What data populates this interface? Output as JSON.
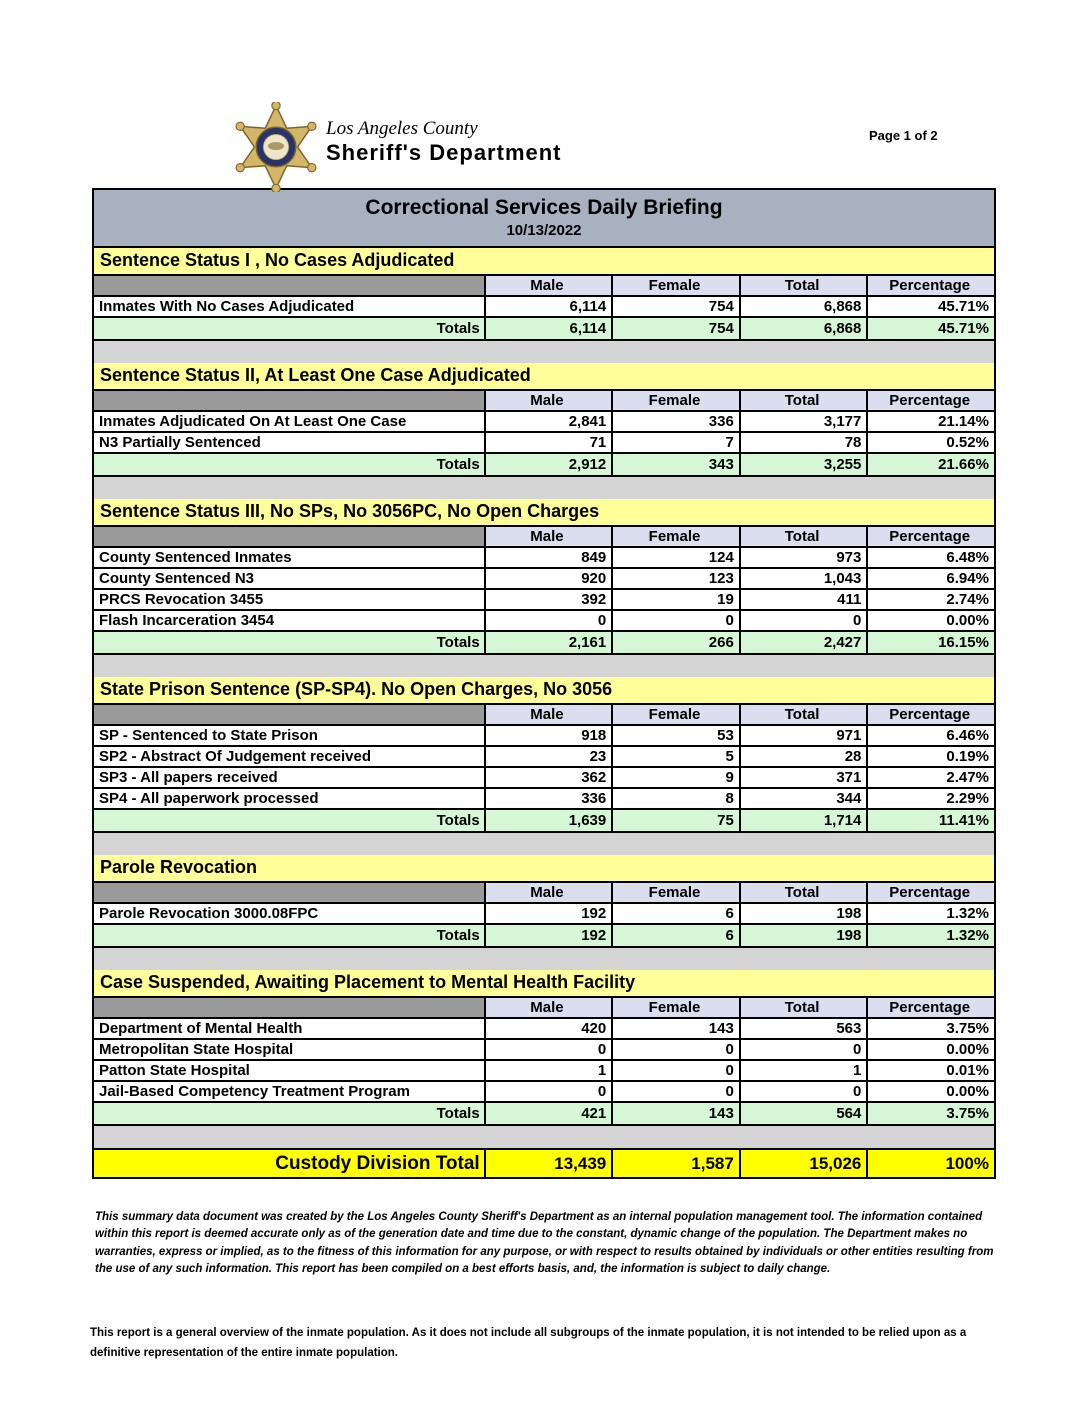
{
  "header": {
    "logo_icon": "sheriff-star-badge-icon",
    "agency_line1": "Los Angeles County",
    "agency_line2": "Sheriff's Department",
    "page_label": "Page 1 of 2"
  },
  "report": {
    "title": "Correctional Services Daily Briefing",
    "date": "10/13/2022",
    "columns": [
      "Male",
      "Female",
      "Total",
      "Percentage"
    ],
    "sections": [
      {
        "title": "Sentence Status I , No Cases Adjudicated",
        "rows": [
          {
            "label": "Inmates With No Cases Adjudicated",
            "male": "6,114",
            "female": "754",
            "total": "6,868",
            "pct": "45.71%"
          }
        ],
        "totals": {
          "label": "Totals",
          "male": "6,114",
          "female": "754",
          "total": "6,868",
          "pct": "45.71%"
        }
      },
      {
        "title": "Sentence Status II, At Least One Case Adjudicated",
        "rows": [
          {
            "label": "Inmates Adjudicated On At Least One Case",
            "male": "2,841",
            "female": "336",
            "total": "3,177",
            "pct": "21.14%"
          },
          {
            "label": "N3 Partially Sentenced",
            "male": "71",
            "female": "7",
            "total": "78",
            "pct": "0.52%"
          }
        ],
        "totals": {
          "label": "Totals",
          "male": "2,912",
          "female": "343",
          "total": "3,255",
          "pct": "21.66%"
        }
      },
      {
        "title": "Sentence Status III, No SPs, No 3056PC, No Open Charges",
        "rows": [
          {
            "label": "County Sentenced Inmates",
            "male": "849",
            "female": "124",
            "total": "973",
            "pct": "6.48%"
          },
          {
            "label": "County Sentenced N3",
            "male": "920",
            "female": "123",
            "total": "1,043",
            "pct": "6.94%"
          },
          {
            "label": "PRCS Revocation 3455",
            "male": "392",
            "female": "19",
            "total": "411",
            "pct": "2.74%"
          },
          {
            "label": "Flash Incarceration 3454",
            "male": "0",
            "female": "0",
            "total": "0",
            "pct": "0.00%"
          }
        ],
        "totals": {
          "label": "Totals",
          "male": "2,161",
          "female": "266",
          "total": "2,427",
          "pct": "16.15%"
        }
      },
      {
        "title": "State Prison Sentence (SP-SP4). No Open Charges, No 3056",
        "rows": [
          {
            "label": "SP - Sentenced to State Prison",
            "male": "918",
            "female": "53",
            "total": "971",
            "pct": "6.46%"
          },
          {
            "label": "SP2 - Abstract Of Judgement received",
            "male": "23",
            "female": "5",
            "total": "28",
            "pct": "0.19%"
          },
          {
            "label": "SP3 - All papers received",
            "male": "362",
            "female": "9",
            "total": "371",
            "pct": "2.47%"
          },
          {
            "label": "SP4 - All paperwork processed",
            "male": "336",
            "female": "8",
            "total": "344",
            "pct": "2.29%"
          }
        ],
        "totals": {
          "label": "Totals",
          "male": "1,639",
          "female": "75",
          "total": "1,714",
          "pct": "11.41%"
        }
      },
      {
        "title": "Parole Revocation",
        "rows": [
          {
            "label": "Parole Revocation 3000.08FPC",
            "male": "192",
            "female": "6",
            "total": "198",
            "pct": "1.32%"
          }
        ],
        "totals": {
          "label": "Totals",
          "male": "192",
          "female": "6",
          "total": "198",
          "pct": "1.32%"
        }
      },
      {
        "title": "Case Suspended, Awaiting Placement to Mental Health Facility",
        "rows": [
          {
            "label": "Department of Mental Health",
            "male": "420",
            "female": "143",
            "total": "563",
            "pct": "3.75%"
          },
          {
            "label": "Metropolitan State Hospital",
            "male": "0",
            "female": "0",
            "total": "0",
            "pct": "0.00%"
          },
          {
            "label": "Patton State Hospital",
            "male": "1",
            "female": "0",
            "total": "1",
            "pct": "0.01%"
          },
          {
            "label": "Jail-Based Competency Treatment Program",
            "male": "0",
            "female": "0",
            "total": "0",
            "pct": "0.00%"
          }
        ],
        "totals": {
          "label": "Totals",
          "male": "421",
          "female": "143",
          "total": "564",
          "pct": "3.75%"
        }
      }
    ],
    "grand_total": {
      "label": "Custody Division Total",
      "male": "13,439",
      "female": "1,587",
      "total": "15,026",
      "pct": "100%"
    }
  },
  "footer": {
    "disclaimer": "This summary data document was created by the Los Angeles County Sheriff's Department as an internal population management tool.  The information contained within this report is deemed accurate only as of the generation date and time due to the constant, dynamic change of the population.  The Department makes no warranties, express or implied, as to the fitness of this information for any purpose, or with respect to results obtained by individuals or other entities resulting from the use of any such information.  This report has been compiled on a best efforts basis, and, the information is subject to daily change.",
    "note": "This report is a general overview of the inmate population.  As it does not include all subgroups of the inmate population, it is not intended to be relied upon as a definitive representation of the entire inmate population."
  },
  "colors": {
    "title_bar_bg": "#a8b1bf",
    "section_header_bg": "#ffff99",
    "column_header_bg": "#dbdeef",
    "totals_bg": "#d5f7d5",
    "grand_total_bg": "#ffff00"
  }
}
